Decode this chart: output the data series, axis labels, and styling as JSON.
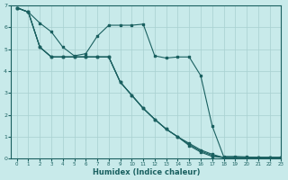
{
  "title": "",
  "xlabel": "Humidex (Indice chaleur)",
  "ylabel": "",
  "bg_color": "#c8eaea",
  "grid_color": "#a8d0d0",
  "line_color": "#1a6060",
  "ylim": [
    0,
    7
  ],
  "xlim": [
    -0.5,
    23
  ],
  "yticks": [
    0,
    1,
    2,
    3,
    4,
    5,
    6,
    7
  ],
  "xticks": [
    0,
    1,
    2,
    3,
    4,
    5,
    6,
    7,
    8,
    9,
    10,
    11,
    12,
    13,
    14,
    15,
    16,
    17,
    18,
    19,
    20,
    21,
    22,
    23
  ],
  "line1_x": [
    0,
    1,
    2,
    3,
    4,
    5,
    6,
    7,
    8,
    9,
    10,
    11,
    12,
    13,
    14,
    15,
    16,
    17,
    18,
    19,
    20,
    21,
    22,
    23
  ],
  "line1_y": [
    6.9,
    6.7,
    6.2,
    5.8,
    5.1,
    4.7,
    4.8,
    5.6,
    6.1,
    6.1,
    6.1,
    6.15,
    4.7,
    4.6,
    4.65,
    4.65,
    3.8,
    1.5,
    0.1,
    0.1,
    0.08,
    0.05,
    0.05,
    0.05
  ],
  "line2_x": [
    0,
    1,
    2,
    3,
    4,
    5,
    6,
    7,
    8,
    9,
    10,
    11,
    12,
    13,
    14,
    15,
    16,
    17,
    18,
    19,
    20,
    21,
    22,
    23
  ],
  "line2_y": [
    6.9,
    6.7,
    5.1,
    4.65,
    4.65,
    4.65,
    4.65,
    4.65,
    4.65,
    3.5,
    2.9,
    2.3,
    1.8,
    1.35,
    1.0,
    0.7,
    0.4,
    0.2,
    0.05,
    0.05,
    0.05,
    0.05,
    0.05,
    0.05
  ],
  "line3_x": [
    0,
    1,
    2,
    3,
    4,
    5,
    6,
    7,
    8,
    9,
    10,
    11,
    12,
    13,
    14,
    15,
    16,
    17,
    18,
    19,
    20,
    21,
    22,
    23
  ],
  "line3_y": [
    6.9,
    6.7,
    5.1,
    4.65,
    4.65,
    4.65,
    4.65,
    4.65,
    4.65,
    3.5,
    2.9,
    2.3,
    1.8,
    1.35,
    1.0,
    0.65,
    0.35,
    0.15,
    0.05,
    0.05,
    0.05,
    0.05,
    0.05,
    0.05
  ],
  "line4_x": [
    0,
    1,
    2,
    3,
    4,
    5,
    6,
    7,
    8,
    9,
    10,
    11,
    12,
    13,
    14,
    15,
    16,
    17,
    18,
    19,
    20,
    21,
    22,
    23
  ],
  "line4_y": [
    6.9,
    6.7,
    5.1,
    4.65,
    4.65,
    4.65,
    4.65,
    4.65,
    4.65,
    3.5,
    2.9,
    2.3,
    1.8,
    1.35,
    1.0,
    0.6,
    0.3,
    0.1,
    0.05,
    0.05,
    0.05,
    0.05,
    0.05,
    0.05
  ]
}
